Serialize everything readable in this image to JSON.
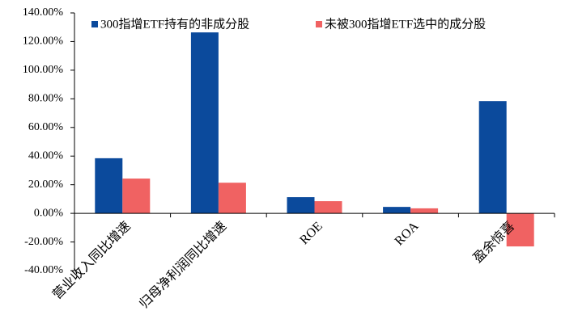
{
  "chart_data": {
    "type": "bar",
    "categories": [
      "营业收入同比增速",
      "归母净利润同比增速",
      "ROE",
      "ROA",
      "盈余惊喜"
    ],
    "series": [
      {
        "name": "300指增ETF持有的非成分股",
        "color": "#0b4a9c",
        "values": [
          38.5,
          126.4,
          11.3,
          4.5,
          78.4
        ]
      },
      {
        "name": "未被300指增ETF选中的成分股",
        "color": "#f06262",
        "values": [
          24.3,
          21.4,
          8.5,
          3.5,
          -23.1
        ]
      }
    ],
    "ylim": [
      -40,
      140
    ],
    "yticks": [
      {
        "value": -40,
        "label": "-40.00%"
      },
      {
        "value": -20,
        "label": "-20.00%"
      },
      {
        "value": 0,
        "label": "0.00%"
      },
      {
        "value": 20,
        "label": "20.00%"
      },
      {
        "value": 40,
        "label": "40.00%"
      },
      {
        "value": 60,
        "label": "60.00%"
      },
      {
        "value": 80,
        "label": "80.00%"
      },
      {
        "value": 100,
        "label": "100.00%"
      },
      {
        "value": 120,
        "label": "120.00%"
      },
      {
        "value": 140,
        "label": "140.00%"
      }
    ],
    "legend": "top"
  }
}
